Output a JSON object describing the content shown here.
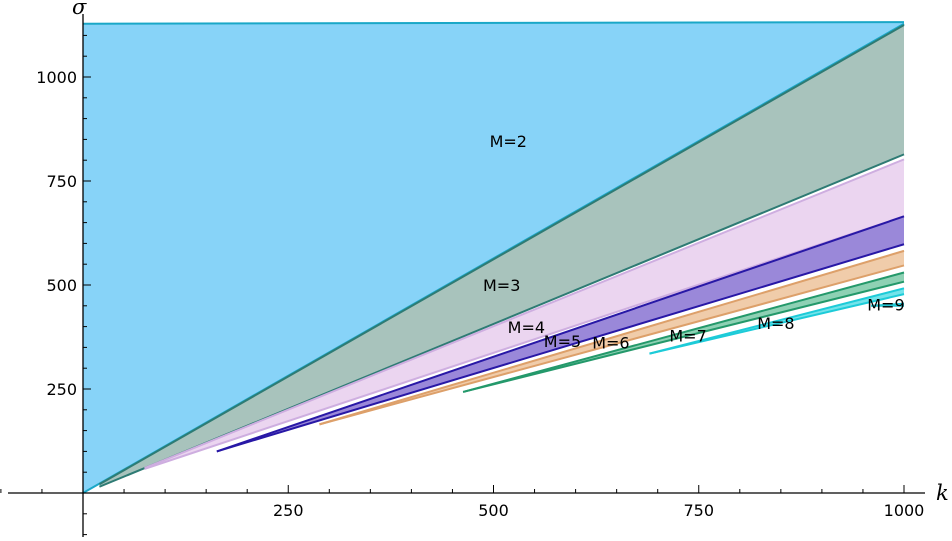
{
  "chart_data": {
    "type": "area",
    "title": "",
    "xlabel": "k",
    "ylabel": "σ",
    "xlim": [
      0,
      1000
    ],
    "ylim": [
      0,
      1130
    ],
    "x_ticks": [
      250,
      500,
      750,
      1000
    ],
    "x_tick_labels": [
      "250",
      "500",
      "750",
      "1000"
    ],
    "y_ticks": [
      250,
      500,
      750,
      1000
    ],
    "y_tick_labels": [
      "250",
      "500",
      "750",
      "1000"
    ],
    "grid": false,
    "series": [
      {
        "name": "M=2",
        "color": "#87d3f8",
        "edge": "#1aa7c7",
        "x_start": 0,
        "upper": [
          1128,
          1132
        ],
        "lower": [
          0,
          1128
        ],
        "label_at": [
          518,
          842
        ]
      },
      {
        "name": "M=3",
        "color": "#a8c3bc",
        "edge": "#2e7b74",
        "x_start": 20,
        "upper": [
          21,
          1125
        ],
        "lower": [
          15,
          814
        ],
        "label_at": [
          510,
          496
        ]
      },
      {
        "name": "M=4",
        "color": "#ebd5f0",
        "edge": "#ceaee0",
        "x_start": 75,
        "upper": [
          60,
          802
        ],
        "lower": [
          58,
          665
        ],
        "label_at": [
          540,
          395
        ]
      },
      {
        "name": "M=5",
        "color": "#9a88d9",
        "edge": "#2818a6",
        "x_start": 163,
        "upper": [
          100,
          665
        ],
        "lower": [
          100,
          598
        ],
        "label_at": [
          584,
          362
        ]
      },
      {
        "name": "M=6",
        "color": "#f0ccaa",
        "edge": "#dda06a",
        "x_start": 288,
        "upper": [
          165,
          582
        ],
        "lower": [
          165,
          547
        ],
        "label_at": [
          643,
          358
        ]
      },
      {
        "name": "M=7",
        "color": "#8ed1b4",
        "edge": "#24996b",
        "x_start": 463,
        "upper": [
          243,
          530
        ],
        "lower": [
          243,
          508
        ],
        "label_at": [
          737,
          375
        ]
      },
      {
        "name": "M=8",
        "color": "#73e3ea",
        "edge": "#1dcbd8",
        "x_start": 690,
        "upper": [
          335,
          492
        ],
        "lower": [
          335,
          478
        ],
        "label_at": [
          844,
          405
        ]
      },
      {
        "name": "M=9",
        "color": "#a8ecf0",
        "edge": "#22c6d3",
        "x_start": 960,
        "upper": [
          450,
          455
        ],
        "lower": [
          450,
          450
        ],
        "label_at": [
          978,
          450
        ]
      }
    ]
  }
}
